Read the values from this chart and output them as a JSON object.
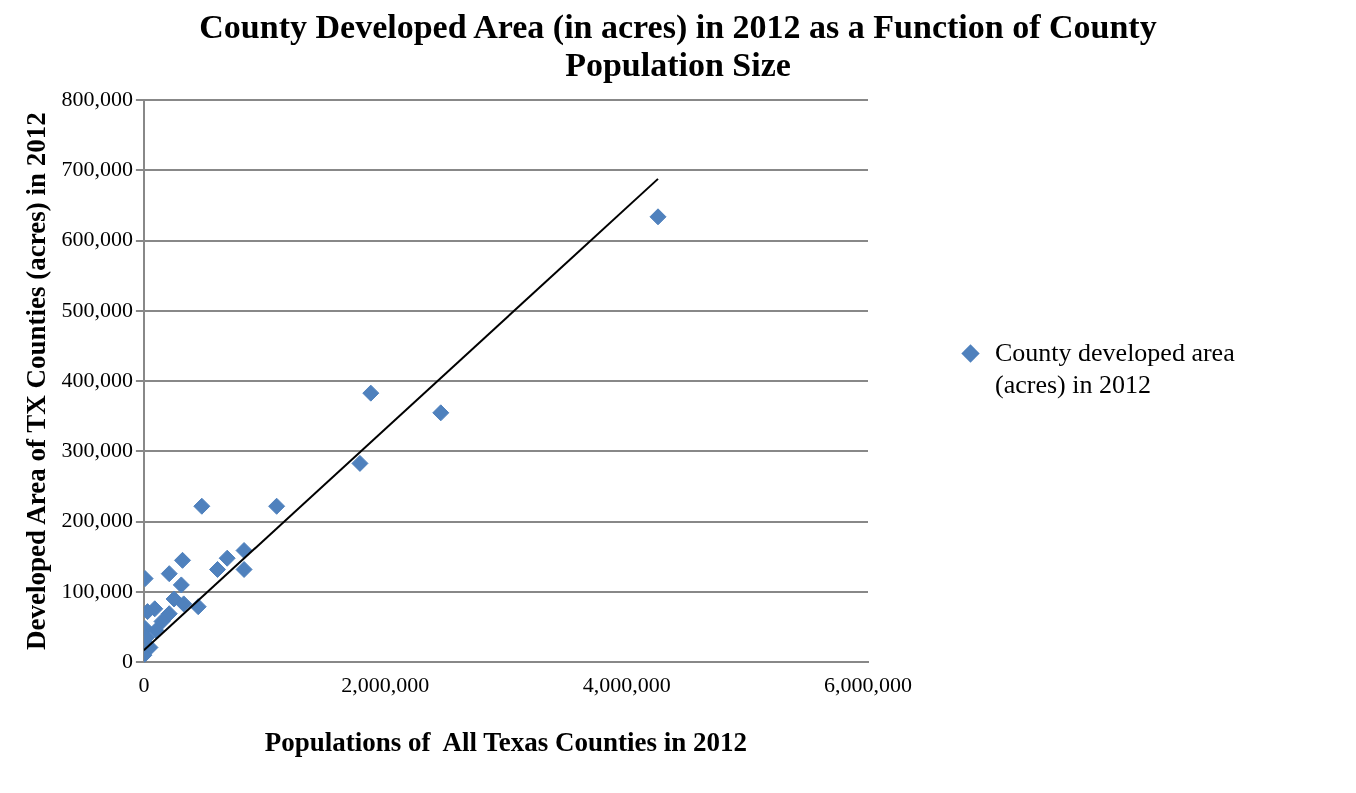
{
  "chart_data": {
    "type": "scatter",
    "title": "County Developed Area (in acres) in 2012 as a Function of County Population Size",
    "xlabel": "Populations of  All Texas Counties in 2012",
    "ylabel": "Developed Area of TX Counties (acres) in 2012",
    "xlim": [
      0,
      6000000
    ],
    "xticks": [
      {
        "value": 0,
        "label": "0"
      },
      {
        "value": 2000000,
        "label": "2,000,000"
      },
      {
        "value": 4000000,
        "label": "4,000,000"
      },
      {
        "value": 6000000,
        "label": "6,000,000"
      }
    ],
    "ylim": [
      0,
      800000
    ],
    "yticks": [
      {
        "value": 0,
        "label": "0"
      },
      {
        "value": 100000,
        "label": "100,000"
      },
      {
        "value": 200000,
        "label": "200,000"
      },
      {
        "value": 300000,
        "label": "300,000"
      },
      {
        "value": 400000,
        "label": "400,000"
      },
      {
        "value": 500000,
        "label": "500,000"
      },
      {
        "value": 600000,
        "label": "600,000"
      },
      {
        "value": 700000,
        "label": "700,000"
      },
      {
        "value": 800000,
        "label": "800,000"
      }
    ],
    "grid": "y",
    "legend": "right",
    "marker": "diamond",
    "series": [
      {
        "name": "County developed area (acres) in 2012",
        "color": "#4f81bd",
        "x": [
          4260000,
          1880000,
          2460000,
          1790000,
          1100000,
          480000,
          830000,
          830000,
          690000,
          610000,
          320000,
          10000,
          210000,
          310000,
          450000,
          250000,
          330000,
          90000,
          30000,
          210000,
          10000,
          50000,
          0,
          20000,
          100000,
          150000
        ],
        "values": [
          634000,
          383000,
          355000,
          283000,
          222000,
          222000,
          159000,
          132000,
          148000,
          132000,
          145000,
          119000,
          126000,
          110000,
          79000,
          90000,
          83000,
          76000,
          72000,
          69000,
          48000,
          21000,
          10000,
          35000,
          45000,
          58000
        ]
      },
      {
        "type": "line",
        "color": "#000000",
        "marker": "none",
        "x": [
          0,
          4260000
        ],
        "values": [
          17000,
          688000
        ]
      }
    ]
  }
}
